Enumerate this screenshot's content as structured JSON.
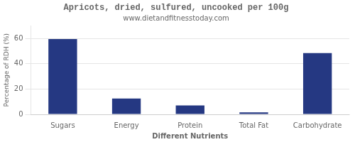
{
  "chart_data": {
    "type": "bar",
    "title": "Apricots, dried, sulfured, uncooked per 100g",
    "subtitle": "www.dietandfitnesstoday.com",
    "xlabel": "Different Nutrients",
    "ylabel": "Percentage of RDH (%)",
    "categories": [
      "Sugars",
      "Energy",
      "Protein",
      "Total Fat",
      "Carbohydrate"
    ],
    "values": [
      59.5,
      12.5,
      7.0,
      1.5,
      48.5
    ],
    "color": "#253882",
    "ylim": [
      0,
      70
    ],
    "yticks": [
      0,
      20,
      40,
      60
    ],
    "grid": true
  }
}
